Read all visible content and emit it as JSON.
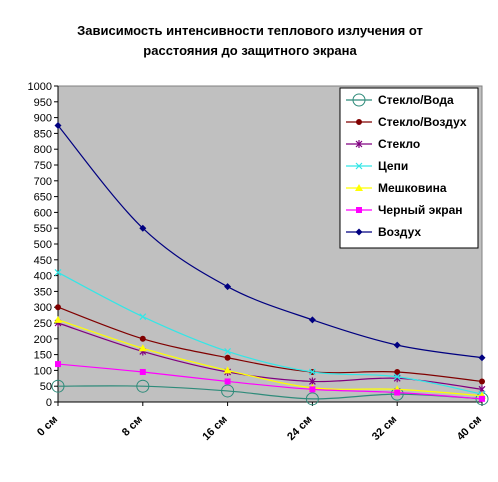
{
  "chart_data": {
    "type": "line",
    "title_line1": "Зависимость интенсивности теплового излучения от",
    "title_line2": "расстояния до защитного экрана",
    "xlabel": "",
    "ylabel": "",
    "categories": [
      "0 см",
      "8 см",
      "16 см",
      "24 см",
      "32 см",
      "40 см"
    ],
    "yticks": [
      0,
      50,
      100,
      150,
      200,
      250,
      300,
      350,
      400,
      450,
      500,
      550,
      600,
      650,
      700,
      750,
      800,
      850,
      900,
      950,
      1000
    ],
    "ylim": [
      0,
      1000
    ],
    "grid": false,
    "plot_background": "#c0c0c0",
    "legend_position": "top-right",
    "series": [
      {
        "name": "Стекло/Вода",
        "color": "#2e8b7a",
        "marker": "circle",
        "values": [
          50,
          50,
          35,
          10,
          25,
          10
        ]
      },
      {
        "name": "Стекло/Воздух",
        "color": "#800000",
        "marker": "circle-small",
        "values": [
          300,
          200,
          140,
          95,
          95,
          65
        ]
      },
      {
        "name": "Стекло",
        "color": "#800080",
        "marker": "star",
        "values": [
          250,
          160,
          95,
          65,
          75,
          40
        ]
      },
      {
        "name": "Цепи",
        "color": "#33e6e6",
        "marker": "x",
        "values": [
          410,
          270,
          160,
          95,
          80,
          25
        ]
      },
      {
        "name": "Мешковина",
        "color": "#ffff00",
        "marker": "triangle",
        "values": [
          260,
          170,
          100,
          45,
          40,
          20
        ]
      },
      {
        "name": "Черный экран",
        "color": "#ff00ff",
        "marker": "square",
        "values": [
          120,
          95,
          65,
          40,
          30,
          10
        ]
      },
      {
        "name": "Воздух",
        "color": "#000080",
        "marker": "diamond",
        "values": [
          875,
          550,
          365,
          260,
          180,
          140
        ]
      }
    ]
  }
}
